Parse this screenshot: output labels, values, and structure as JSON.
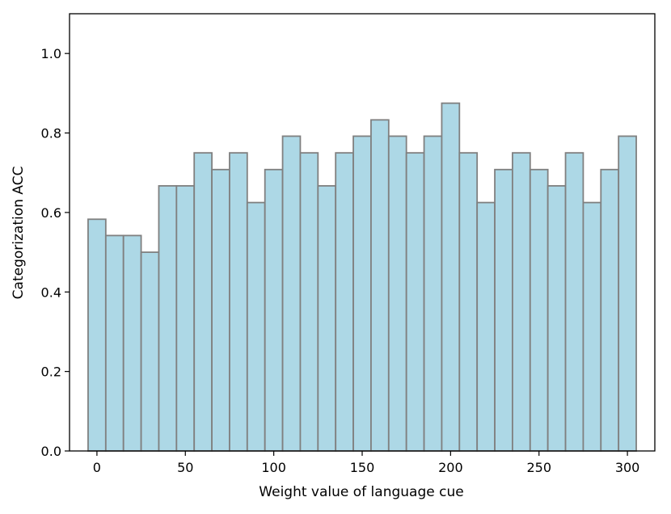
{
  "chart_data": {
    "type": "bar",
    "xlabel": "Weight value of language cue",
    "ylabel": "Categorization ACC",
    "xlim": [
      -15.5,
      315.5
    ],
    "ylim": [
      0,
      1.1
    ],
    "bar_width": 10,
    "x": [
      0,
      10,
      20,
      30,
      40,
      50,
      60,
      70,
      80,
      90,
      100,
      110,
      120,
      130,
      140,
      150,
      160,
      170,
      180,
      190,
      200,
      210,
      220,
      230,
      240,
      250,
      260,
      270,
      280,
      290,
      300
    ],
    "values": [
      0.583,
      0.542,
      0.542,
      0.5,
      0.667,
      0.667,
      0.75,
      0.708,
      0.75,
      0.625,
      0.708,
      0.792,
      0.75,
      0.667,
      0.75,
      0.792,
      0.833,
      0.792,
      0.75,
      0.792,
      0.875,
      0.75,
      0.625,
      0.708,
      0.75,
      0.708,
      0.667,
      0.75,
      0.625,
      0.708,
      0.792
    ],
    "x_ticks": [
      "0",
      "50",
      "100",
      "150",
      "200",
      "250",
      "300"
    ],
    "y_ticks": [
      "0.0",
      "0.2",
      "0.4",
      "0.6",
      "0.8",
      "1.0"
    ],
    "bar_color": "#add8e6",
    "edge_color": "#808080",
    "grid": false
  }
}
